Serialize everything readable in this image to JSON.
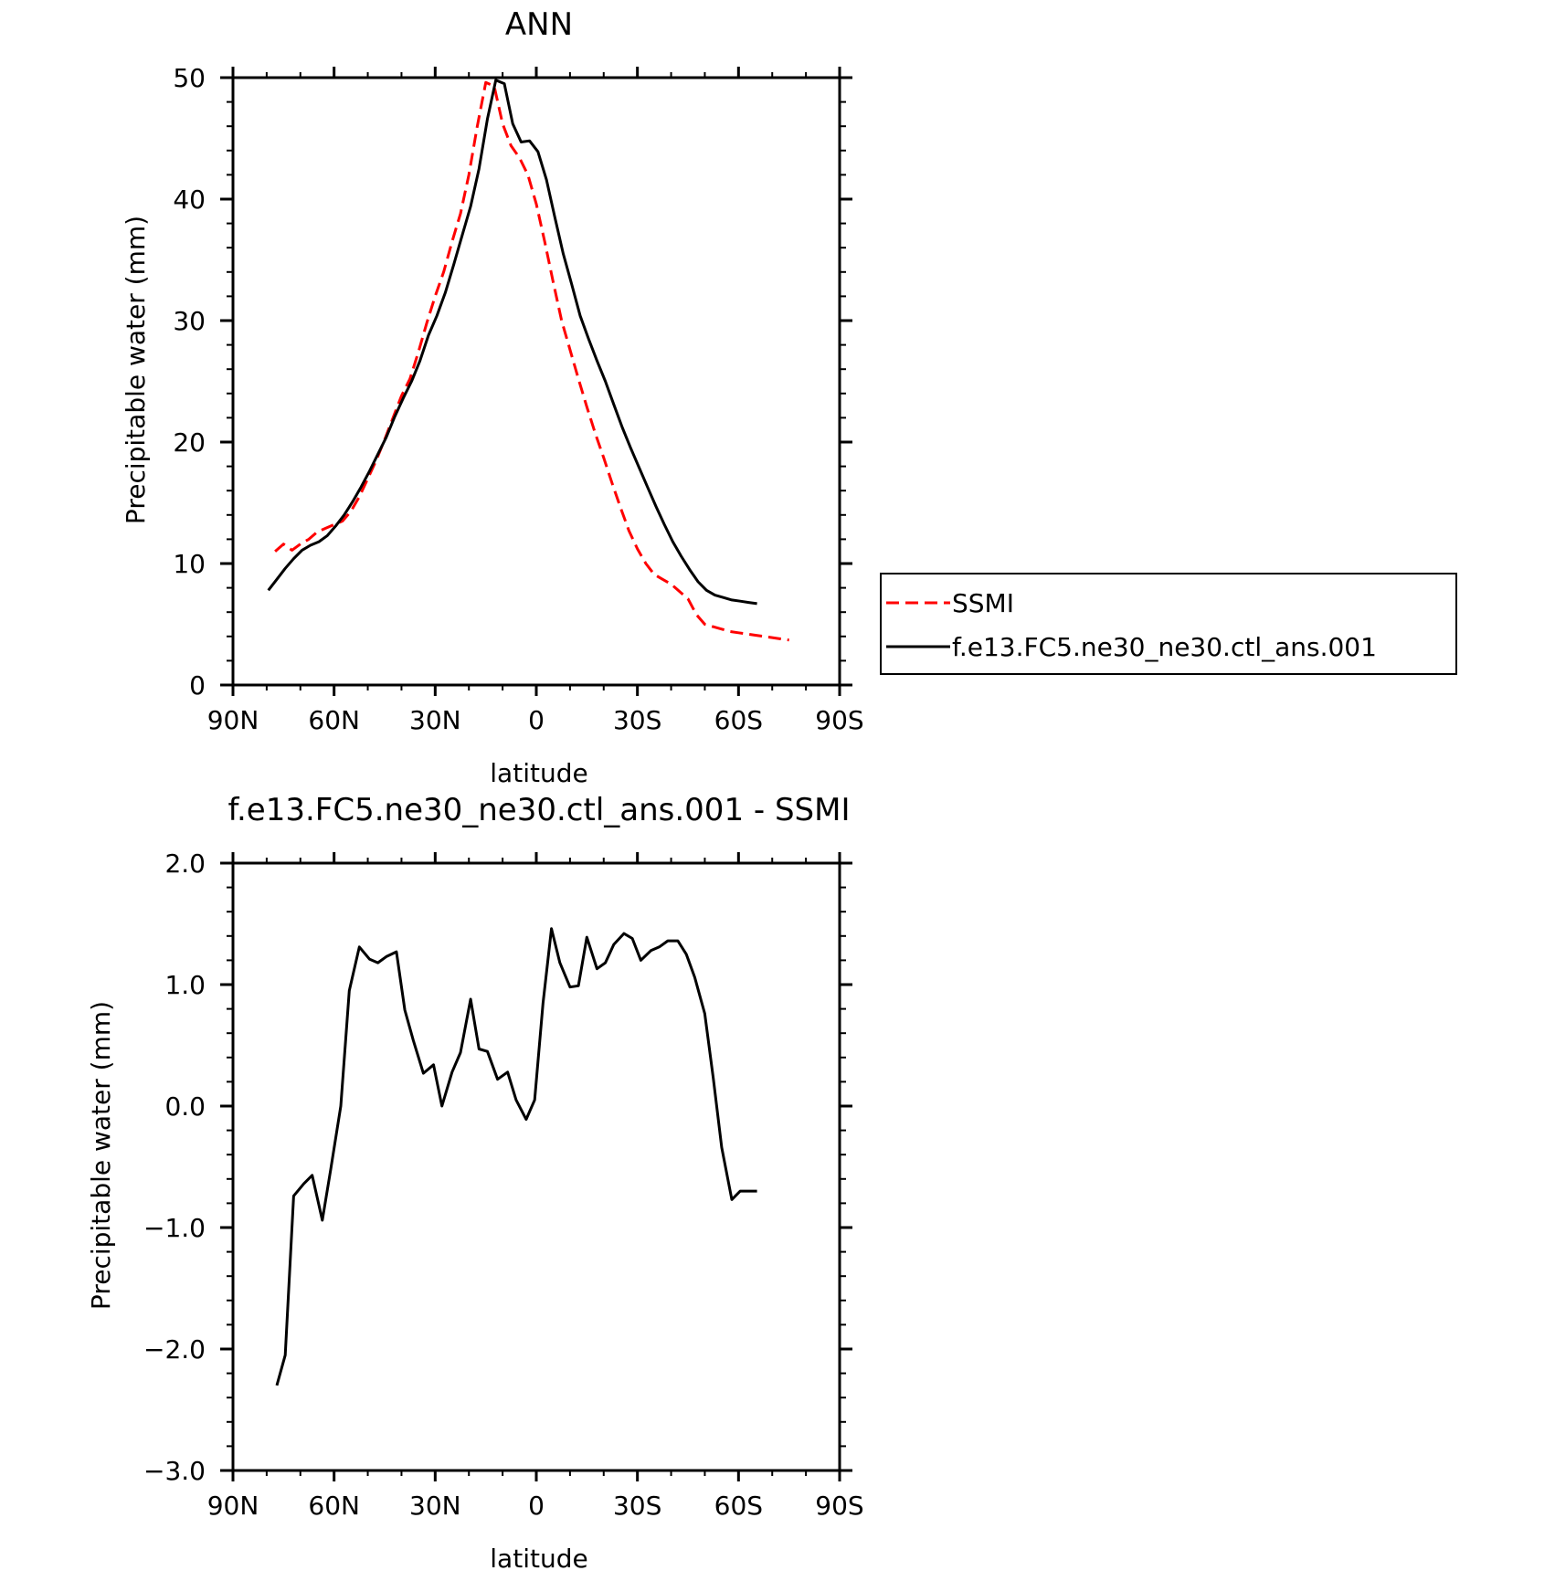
{
  "chart_data": [
    {
      "type": "line",
      "title": "ANN",
      "xlabel": "latitude",
      "ylabel": "Precipitable water (mm)",
      "xlim": [
        90,
        -90
      ],
      "ylim": [
        0,
        50
      ],
      "xticks": [
        90,
        60,
        30,
        0,
        -30,
        -60,
        -90
      ],
      "xtick_labels": [
        "90N",
        "60N",
        "30N",
        "0",
        "30S",
        "60S",
        "90S"
      ],
      "yticks": [
        0,
        10,
        20,
        30,
        40,
        50
      ],
      "ytick_labels": [
        "0",
        "10",
        "20",
        "30",
        "40",
        "50"
      ],
      "grid": false,
      "legend": "right",
      "series": [
        {
          "name": "SSMI",
          "color": "#ff0000",
          "dash": "dashed",
          "x": [
            77.5,
            75,
            72.5,
            70,
            67.5,
            65,
            62.5,
            60,
            57.5,
            55,
            52.5,
            50,
            47.5,
            45,
            42.5,
            40,
            37.5,
            35,
            32.5,
            30,
            27.5,
            25,
            22.5,
            20,
            17.5,
            15,
            12.5,
            10,
            7.5,
            5,
            2.5,
            0,
            -2.5,
            -5,
            -7.5,
            -10,
            -12.5,
            -15,
            -17.5,
            -20,
            -22.5,
            -25,
            -27.5,
            -30,
            -32.5,
            -35,
            -37.5,
            -40,
            -42.5,
            -45,
            -47.5,
            -50,
            -52.5,
            -55,
            -57.5,
            -60,
            -62.5,
            -65,
            -67.5,
            -70,
            -72.5,
            -75
          ],
          "y": [
            11.0,
            11.6,
            11.1,
            11.6,
            12.0,
            12.6,
            12.9,
            13.2,
            13.5,
            14.3,
            15.5,
            17.0,
            18.5,
            20.2,
            22.0,
            23.8,
            25.2,
            27.4,
            29.8,
            32.0,
            34.0,
            36.5,
            38.8,
            42.0,
            46.0,
            49.6,
            49.3,
            46.2,
            44.4,
            43.4,
            42.0,
            39.6,
            36.5,
            33.2,
            30.0,
            27.6,
            25.2,
            22.9,
            20.7,
            18.7,
            16.6,
            14.6,
            12.7,
            11.2,
            10.0,
            9.1,
            8.7,
            8.3,
            7.7,
            7.1,
            5.8,
            5.0,
            4.8,
            4.6,
            4.4,
            4.3,
            4.2,
            4.1,
            4.0,
            3.9,
            3.8,
            3.7
          ]
        },
        {
          "name": "f.e13.FC5.ne30_ne30.ctl_ans.001",
          "color": "#000000",
          "dash": "solid",
          "x": [
            79.5,
            77,
            74.5,
            72,
            69.5,
            67,
            64.5,
            62,
            59.5,
            57,
            54.5,
            52,
            49.5,
            47,
            44.5,
            42,
            39.5,
            37,
            34.5,
            32,
            29.5,
            27,
            24.5,
            22,
            19.5,
            17,
            14.5,
            12,
            9.5,
            7,
            4.5,
            2,
            -0.5,
            -3,
            -5.5,
            -8,
            -10.5,
            -13,
            -15.5,
            -18,
            -20.5,
            -23,
            -25.5,
            -28,
            -30.5,
            -33,
            -35.5,
            -38,
            -40.5,
            -43,
            -45.5,
            -48,
            -50.5,
            -53,
            -55.5,
            -58,
            -60.5,
            -63,
            -65.5
          ],
          "y": [
            7.8,
            8.7,
            9.6,
            10.4,
            11.1,
            11.5,
            11.8,
            12.3,
            13.1,
            14.0,
            15.1,
            16.3,
            17.6,
            19.0,
            20.4,
            22.1,
            23.6,
            25.0,
            26.7,
            28.8,
            30.4,
            32.3,
            34.6,
            37.0,
            39.4,
            42.5,
            46.6,
            49.8,
            49.5,
            46.2,
            44.7,
            44.8,
            43.9,
            41.6,
            38.5,
            35.5,
            33.0,
            30.4,
            28.5,
            26.7,
            25.0,
            23.1,
            21.2,
            19.5,
            17.9,
            16.3,
            14.7,
            13.2,
            11.8,
            10.6,
            9.5,
            8.5,
            7.8,
            7.4,
            7.2,
            7.0,
            6.9,
            6.8,
            6.7
          ]
        }
      ]
    },
    {
      "type": "line",
      "title": "f.e13.FC5.ne30_ne30.ctl_ans.001 - SSMI",
      "xlabel": "latitude",
      "ylabel": "Precipitable water (mm)",
      "xlim": [
        90,
        -90
      ],
      "ylim": [
        -3.0,
        2.0
      ],
      "xticks": [
        90,
        60,
        30,
        0,
        -30,
        -60,
        -90
      ],
      "xtick_labels": [
        "90N",
        "60N",
        "30N",
        "0",
        "30S",
        "60S",
        "90S"
      ],
      "yticks": [
        2.0,
        1.0,
        0.0,
        -1.0,
        -2.0,
        -3.0
      ],
      "ytick_labels": [
        "2.0",
        "1.0",
        "0.0",
        "−1.0",
        "−2.0",
        "−3.0"
      ],
      "grid": false,
      "series": [
        {
          "color": "#000000",
          "x": [
            77,
            74.5,
            72,
            69,
            66.5,
            63.5,
            61,
            58,
            55.5,
            52.5,
            49.5,
            47,
            44.5,
            41.5,
            39,
            36.5,
            33.5,
            30.5,
            28,
            25,
            22.5,
            19.5,
            17,
            14.5,
            11.5,
            8.5,
            6,
            3,
            0.5,
            -2,
            -4.5,
            -7,
            -10,
            -12.5,
            -15,
            -18,
            -20.5,
            -23,
            -26,
            -28.5,
            -31,
            -34,
            -36.5,
            -39,
            -42,
            -44.5,
            -47,
            -50,
            -52.5,
            -55,
            -58,
            -60.5,
            -63,
            -65.5
          ],
          "y": [
            -2.3,
            -2.05,
            -0.74,
            -0.64,
            -0.57,
            -0.94,
            -0.52,
            0.0,
            0.95,
            1.31,
            1.21,
            1.18,
            1.23,
            1.27,
            0.79,
            0.54,
            0.27,
            0.34,
            0.0,
            0.28,
            0.44,
            0.88,
            0.47,
            0.45,
            0.22,
            0.28,
            0.05,
            -0.11,
            0.05,
            0.85,
            1.46,
            1.18,
            0.98,
            0.99,
            1.39,
            1.13,
            1.18,
            1.33,
            1.42,
            1.38,
            1.2,
            1.28,
            1.31,
            1.36,
            1.36,
            1.25,
            1.06,
            0.76,
            0.23,
            -0.34,
            -0.77,
            -0.7,
            -0.7,
            -0.7
          ]
        }
      ]
    }
  ]
}
